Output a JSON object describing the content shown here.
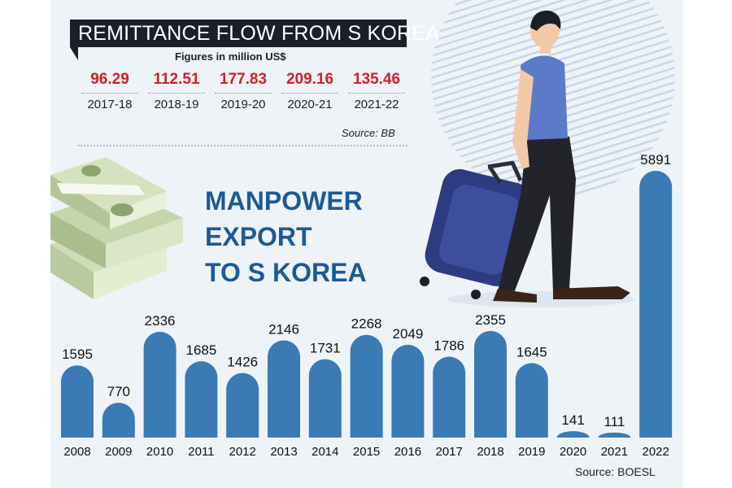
{
  "remittance": {
    "title": "REMITTANCE FLOW FROM S KOREA",
    "subtitle": "Figures in million US$",
    "items": [
      {
        "value": "96.29",
        "year": "2017-18"
      },
      {
        "value": "112.51",
        "year": "2018-19"
      },
      {
        "value": "177.83",
        "year": "2019-20"
      },
      {
        "value": "209.16",
        "year": "2020-21"
      },
      {
        "value": "135.46",
        "year": "2021-22"
      }
    ],
    "source": "Source: BB"
  },
  "chart_title_lines": [
    "MANPOWER",
    "EXPORT",
    "TO S KOREA"
  ],
  "source_bottom": "Source: BOESL",
  "colors": {
    "bar": "#3a7ab5",
    "accent_red": "#d0202a",
    "title_blue": "#1d5a94",
    "banner": "#1b1f29"
  },
  "chart_data": [
    {
      "type": "table",
      "title": "REMITTANCE FLOW FROM S KOREA",
      "subtitle": "Figures in million US$",
      "categories": [
        "2017-18",
        "2018-19",
        "2019-20",
        "2020-21",
        "2021-22"
      ],
      "values": [
        96.29,
        112.51,
        177.83,
        209.16,
        135.46
      ]
    },
    {
      "type": "bar",
      "title": "MANPOWER EXPORT TO S KOREA",
      "categories": [
        "2008",
        "2009",
        "2010",
        "2011",
        "2012",
        "2013",
        "2014",
        "2015",
        "2016",
        "2017",
        "2018",
        "2019",
        "2020",
        "2021",
        "2022"
      ],
      "values": [
        1595,
        770,
        2336,
        1685,
        1426,
        2146,
        1731,
        2268,
        2049,
        1786,
        2355,
        1645,
        141,
        111,
        5891
      ],
      "ylim": [
        0,
        6000
      ],
      "grid": false,
      "legend": "none"
    }
  ]
}
